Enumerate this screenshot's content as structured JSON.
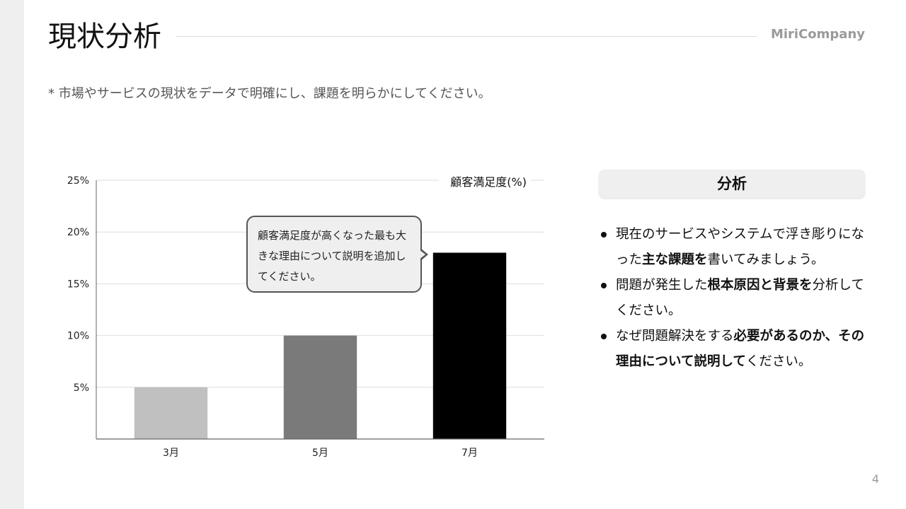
{
  "header": {
    "title": "現状分析",
    "brand": "MiriCompany"
  },
  "subtitle": "* 市場やサービスの現状をデータで明確にし、課題を明らかにしてください。",
  "chart_data": {
    "type": "bar",
    "title": "顧客満足度(%)",
    "categories": [
      "3月",
      "5月",
      "7月"
    ],
    "values": [
      5,
      10,
      18
    ],
    "colors": [
      "#c0c0c0",
      "#7a7a7a",
      "#000000"
    ],
    "ylim": [
      0,
      25
    ],
    "yticks": [
      5,
      10,
      15,
      20,
      25
    ],
    "ytick_labels": [
      "5%",
      "10%",
      "15%",
      "20%",
      "25%"
    ],
    "grid": true,
    "annotation": "顧客満足度が高くなった最も大きな理由について説明を追加してください。"
  },
  "panel": {
    "heading": "分析",
    "bullets": [
      [
        {
          "t": "現在のサービスやシステムで浮き彫りになった"
        },
        {
          "t": "主な課題を",
          "b": true
        },
        {
          "t": "書いてみましょう。"
        }
      ],
      [
        {
          "t": "問題が発生した"
        },
        {
          "t": "根本原因と背景を",
          "b": true
        },
        {
          "t": "分析してください。"
        }
      ],
      [
        {
          "t": "なぜ問題解決をする"
        },
        {
          "t": "必要があるのか、その理由について説明して",
          "b": true
        },
        {
          "t": "ください。"
        }
      ]
    ]
  },
  "page_number": "4"
}
